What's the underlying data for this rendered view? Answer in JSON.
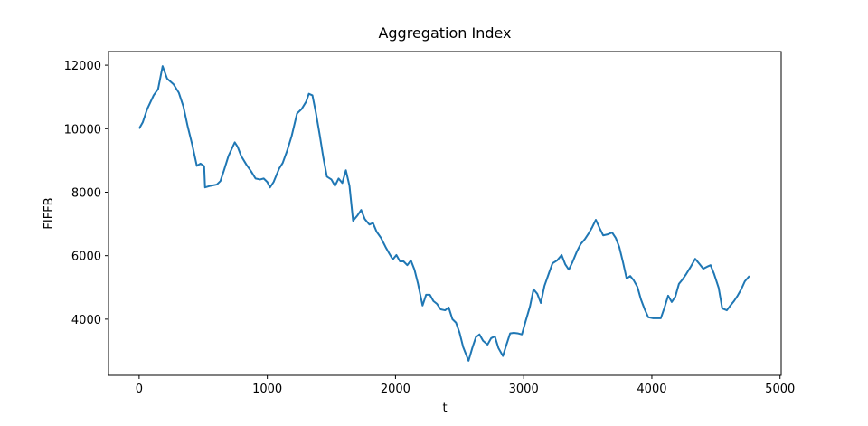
{
  "chart_data": {
    "type": "line",
    "title": "Aggregation Index",
    "xlabel": "t",
    "ylabel": "FIFFB",
    "x": [
      0,
      28,
      63,
      113,
      148,
      183,
      218,
      268,
      310,
      345,
      380,
      415,
      450,
      479,
      507,
      514,
      556,
      606,
      634,
      662,
      697,
      746,
      768,
      796,
      838,
      873,
      908,
      944,
      972,
      1000,
      1021,
      1049,
      1092,
      1120,
      1155,
      1190,
      1232,
      1268,
      1303,
      1324,
      1352,
      1380,
      1408,
      1437,
      1465,
      1500,
      1528,
      1556,
      1585,
      1613,
      1641,
      1669,
      1704,
      1732,
      1761,
      1796,
      1824,
      1852,
      1887,
      1923,
      1951,
      1979,
      2007,
      2035,
      2063,
      2092,
      2120,
      2148,
      2176,
      2211,
      2239,
      2268,
      2296,
      2324,
      2352,
      2387,
      2415,
      2444,
      2472,
      2500,
      2528,
      2570,
      2599,
      2627,
      2655,
      2683,
      2718,
      2746,
      2775,
      2803,
      2838,
      2866,
      2894,
      2923,
      2958,
      2986,
      3014,
      3049,
      3077,
      3106,
      3134,
      3162,
      3197,
      3225,
      3261,
      3296,
      3324,
      3352,
      3380,
      3415,
      3444,
      3479,
      3507,
      3535,
      3563,
      3592,
      3620,
      3655,
      3690,
      3718,
      3746,
      3775,
      3803,
      3831,
      3859,
      3887,
      3915,
      3944,
      3972,
      4007,
      4042,
      4070,
      4099,
      4127,
      4155,
      4183,
      4211,
      4239,
      4268,
      4303,
      4338,
      4373,
      4401,
      4430,
      4458,
      4486,
      4521,
      4549,
      4585,
      4613,
      4641,
      4669,
      4697,
      4725,
      4761
    ],
    "series": [
      {
        "name": "FIFFB",
        "color": "#1f77b4",
        "values": [
          10000,
          10200,
          10620,
          11050,
          11250,
          11970,
          11580,
          11400,
          11130,
          10700,
          10050,
          9480,
          8830,
          8900,
          8820,
          8150,
          8200,
          8240,
          8350,
          8690,
          9140,
          9570,
          9430,
          9140,
          8860,
          8660,
          8430,
          8400,
          8430,
          8320,
          8150,
          8320,
          8740,
          8920,
          9310,
          9770,
          10480,
          10620,
          10850,
          11100,
          11050,
          10480,
          9820,
          9090,
          8490,
          8400,
          8200,
          8430,
          8290,
          8690,
          8200,
          7100,
          7270,
          7440,
          7150,
          6980,
          7030,
          6760,
          6560,
          6270,
          6070,
          5880,
          6020,
          5820,
          5820,
          5700,
          5850,
          5560,
          5110,
          4430,
          4770,
          4770,
          4570,
          4480,
          4310,
          4280,
          4370,
          4000,
          3890,
          3570,
          3120,
          2690,
          3090,
          3430,
          3520,
          3320,
          3200,
          3400,
          3460,
          3090,
          2840,
          3200,
          3550,
          3570,
          3550,
          3520,
          3920,
          4400,
          4940,
          4800,
          4510,
          5050,
          5450,
          5760,
          5850,
          6020,
          5730,
          5560,
          5790,
          6130,
          6360,
          6530,
          6700,
          6900,
          7130,
          6870,
          6640,
          6670,
          6730,
          6560,
          6270,
          5790,
          5280,
          5360,
          5220,
          5020,
          4620,
          4310,
          4060,
          4030,
          4030,
          4030,
          4370,
          4740,
          4540,
          4710,
          5110,
          5250,
          5420,
          5650,
          5900,
          5730,
          5590,
          5650,
          5700,
          5420,
          4990,
          4340,
          4280,
          4430,
          4570,
          4740,
          4940,
          5190,
          5360
        ]
      }
    ],
    "xlim": [
      -239,
      5009
    ],
    "xticks": [
      0,
      1000,
      2000,
      3000,
      4000,
      5000
    ],
    "ylim": [
      2230,
      12430
    ],
    "yticks": [
      4000,
      6000,
      8000,
      10000,
      12000
    ],
    "grid": false
  }
}
